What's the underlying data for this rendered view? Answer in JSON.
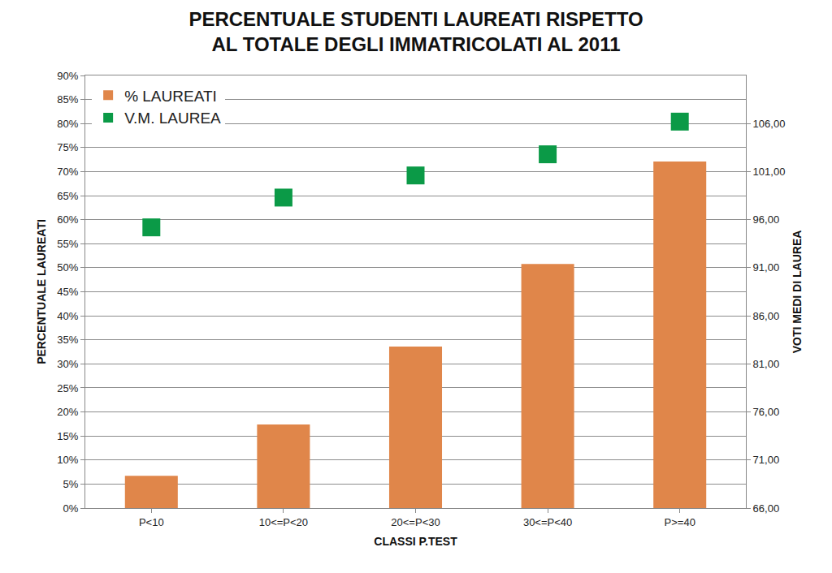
{
  "chart_data": {
    "type": "bar",
    "title": "PERCENTUALE STUDENTI LAUREATI RISPETTO\nAL TOTALE DEGLI IMMATRICOLATI AL 2011",
    "x_label": "CLASSI P.TEST",
    "y_label": "PERCENTUALE LAUREATI",
    "y2_label": "VOTI MEDI DI LAUREA",
    "categories": [
      "P<10",
      "10<=P<20",
      "20<=P<30",
      "30<=P<40",
      "P>=40"
    ],
    "series": [
      {
        "name": "% LAUREATI",
        "type": "bar",
        "color": "#e0864a",
        "values": [
          6.7,
          17.4,
          33.6,
          50.8,
          72.1
        ]
      },
      {
        "name": "V.M. LAUREA",
        "type": "scatter",
        "marker": "square",
        "color": "#0b9a47",
        "axis": "y2",
        "values": [
          95.2,
          98.3,
          100.6,
          102.8,
          106.2
        ]
      }
    ],
    "ylim": [
      0,
      90
    ],
    "yticks": [
      {
        "value": 0,
        "label": "0%"
      },
      {
        "value": 5,
        "label": "5%"
      },
      {
        "value": 10,
        "label": "10%"
      },
      {
        "value": 15,
        "label": "15%"
      },
      {
        "value": 20,
        "label": "20%"
      },
      {
        "value": 25,
        "label": "25%"
      },
      {
        "value": 30,
        "label": "30%"
      },
      {
        "value": 35,
        "label": "35%"
      },
      {
        "value": 40,
        "label": "40%"
      },
      {
        "value": 45,
        "label": "45%"
      },
      {
        "value": 50,
        "label": "50%"
      },
      {
        "value": 55,
        "label": "55%"
      },
      {
        "value": 60,
        "label": "60%"
      },
      {
        "value": 65,
        "label": "65%"
      },
      {
        "value": 70,
        "label": "70%"
      },
      {
        "value": 75,
        "label": "75%"
      },
      {
        "value": 80,
        "label": "80%"
      },
      {
        "value": 85,
        "label": "85%"
      },
      {
        "value": 90,
        "label": "90%"
      }
    ],
    "y2lim": [
      66,
      111
    ],
    "y2ticks": [
      {
        "value": 66,
        "label": "66,00"
      },
      {
        "value": 71,
        "label": "71,00"
      },
      {
        "value": 76,
        "label": "76,00"
      },
      {
        "value": 81,
        "label": "81,00"
      },
      {
        "value": 86,
        "label": "86,00"
      },
      {
        "value": 91,
        "label": "91,00"
      },
      {
        "value": 96,
        "label": "96,00"
      },
      {
        "value": 101,
        "label": "101,00"
      },
      {
        "value": 106,
        "label": "106,00"
      }
    ],
    "grid": true,
    "legend": "upper left"
  }
}
